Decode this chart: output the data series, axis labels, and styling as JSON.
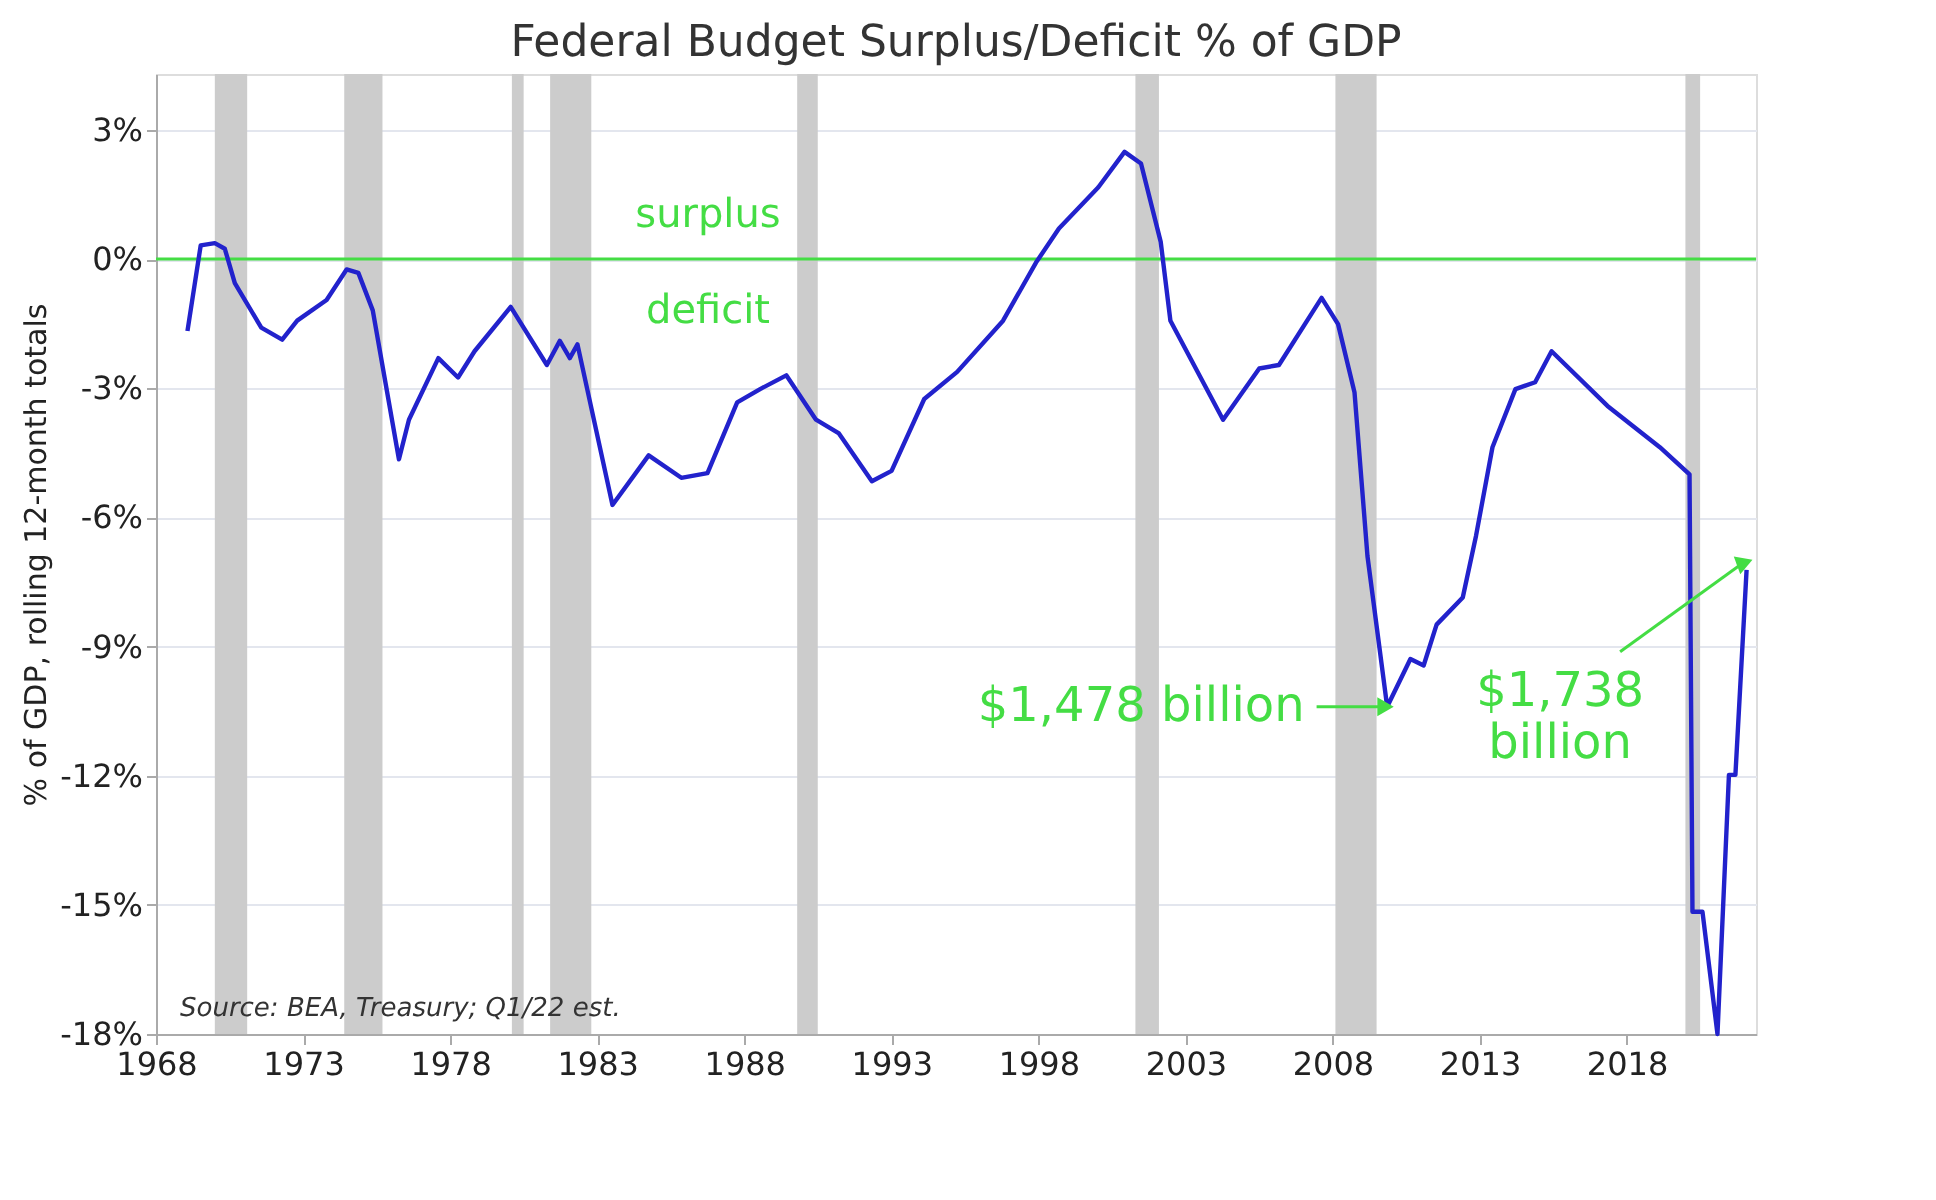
{
  "chart_data": {
    "type": "line",
    "title": "Federal Budget Surplus/Deficit % of GDP",
    "ylabel": "% of GDP, rolling 12-month totals",
    "x": [
      1969.07,
      1969.52,
      1970.0,
      1970.34,
      1970.68,
      1971.58,
      1972.29,
      1972.8,
      1973.8,
      1974.48,
      1974.88,
      1975.37,
      1976.26,
      1976.6,
      1977.6,
      1978.27,
      1978.83,
      1980.06,
      1981.29,
      1981.73,
      1982.07,
      1982.33,
      1983.52,
      1984.75,
      1985.86,
      1986.75,
      1987.76,
      1988.54,
      1989.43,
      1990.44,
      1991.22,
      1992.34,
      1993.01,
      1994.12,
      1995.24,
      1996.8,
      1997.92,
      1998.7,
      2000.04,
      2000.93,
      2001.49,
      2002.16,
      2002.49,
      2004.28,
      2005.51,
      2006.18,
      2007.63,
      2008.19,
      2008.75,
      2009.19,
      2009.86,
      2010.65,
      2011.1,
      2011.54,
      2012.43,
      2012.88,
      2013.44,
      2014.22,
      2014.89,
      2015.45,
      2017.35,
      2019.13,
      2020.14,
      2020.24,
      2020.58,
      2021.09,
      2021.48,
      2021.7,
      2022.08
    ],
    "series": [
      {
        "color": "#2222cc",
        "values": [
          -1.67,
          0.32,
          0.37,
          0.24,
          -0.56,
          -1.59,
          -1.87,
          -1.43,
          -0.95,
          -0.24,
          -0.32,
          -1.19,
          -4.65,
          -3.73,
          -2.3,
          -2.75,
          -2.14,
          -1.11,
          -2.46,
          -1.9,
          -2.3,
          -1.98,
          -5.71,
          -4.56,
          -5.08,
          -4.97,
          -3.33,
          -3.02,
          -2.7,
          -3.73,
          -4.05,
          -5.16,
          -4.92,
          -3.25,
          -2.62,
          -1.43,
          -0.08,
          0.71,
          1.67,
          2.49,
          2.22,
          0.4,
          -1.43,
          -3.73,
          -2.54,
          -2.46,
          -0.9,
          -1.51,
          -3.1,
          -6.9,
          -10.4,
          -9.29,
          -9.44,
          -8.49,
          -7.86,
          -6.43,
          -4.37,
          -3.02,
          -2.86,
          -2.14,
          -3.41,
          -4.37,
          -5.0,
          -15.16,
          -15.16,
          -18.0,
          -11.98,
          -11.98,
          -7.22
        ]
      }
    ],
    "xlim": [
      1968,
      2022.4
    ],
    "xticks": [
      1968,
      1973,
      1978,
      1983,
      1988,
      1993,
      1998,
      2003,
      2008,
      2013,
      2018
    ],
    "ylim": [
      -18,
      4.3
    ],
    "yticks": [
      {
        "value": 3,
        "label": "3%"
      },
      {
        "value": 0,
        "label": "0%"
      },
      {
        "value": -3,
        "label": "-3%"
      },
      {
        "value": -6,
        "label": "-6%"
      },
      {
        "value": -9,
        "label": "-9%"
      },
      {
        "value": -12,
        "label": "-12%"
      },
      {
        "value": -15,
        "label": "-15%"
      },
      {
        "value": -18,
        "label": "-18%"
      }
    ],
    "grid": "y",
    "marker": "none",
    "line_style": "solid",
    "ref_lines": [
      {
        "axis": "y",
        "value": 0,
        "color": "#44dd44"
      }
    ],
    "bands": [
      {
        "axis": "x",
        "from": 1970.0,
        "to": 1971.1,
        "color": "#cccccc"
      },
      {
        "axis": "x",
        "from": 1974.4,
        "to": 1975.7,
        "color": "#cccccc"
      },
      {
        "axis": "x",
        "from": 1980.1,
        "to": 1980.5,
        "color": "#cccccc"
      },
      {
        "axis": "x",
        "from": 1981.4,
        "to": 1982.8,
        "color": "#cccccc"
      },
      {
        "axis": "x",
        "from": 1989.8,
        "to": 1990.5,
        "color": "#cccccc"
      },
      {
        "axis": "x",
        "from": 2001.3,
        "to": 2002.1,
        "color": "#cccccc"
      },
      {
        "axis": "x",
        "from": 2008.1,
        "to": 2009.5,
        "color": "#cccccc"
      },
      {
        "axis": "x",
        "from": 2020.0,
        "to": 2020.5,
        "color": "#cccccc"
      }
    ],
    "annotations": [
      "surplus",
      "deficit",
      {
        "text": "$1,478 billion",
        "x": 2009.86,
        "y": -10.4
      },
      {
        "text": "$1,738\nbillion",
        "x": 2022.08,
        "y": -7.22
      },
      "Source:  BEA, Treasury; Q1/22 est."
    ]
  }
}
